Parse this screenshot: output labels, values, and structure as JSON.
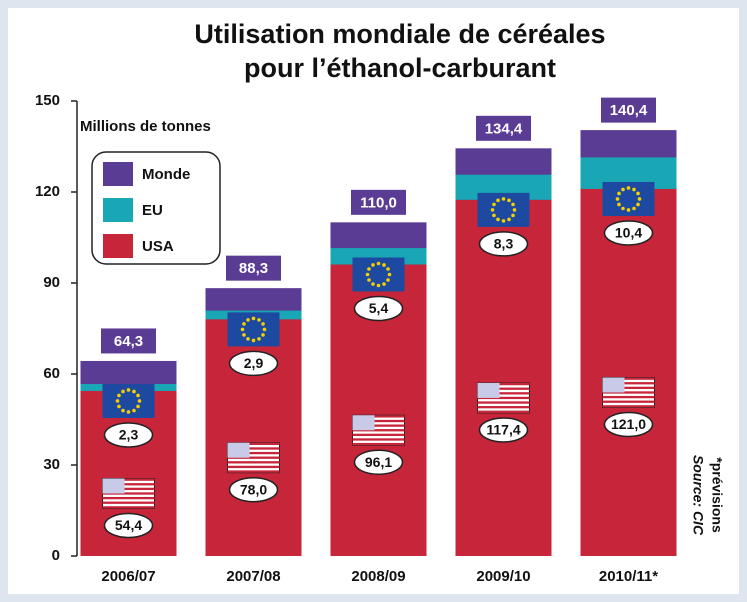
{
  "chart_data": {
    "type": "bar",
    "title": [
      "Utilisation mondiale de céréales",
      "pour l’éthanol-carburant"
    ],
    "y_axis_label": "Millions de tonnes",
    "notes": [
      "Source: CIC",
      "*prévisions"
    ],
    "categories": [
      "2006/07",
      "2007/08",
      "2008/09",
      "2009/10",
      "2010/11*"
    ],
    "series": [
      {
        "name": "Monde",
        "color": "#5a3c94",
        "values": [
          64.3,
          88.3,
          110.0,
          134.4,
          140.4
        ],
        "value_labels": [
          "64,3",
          "88,3",
          "110,0",
          "134,4",
          "140,4"
        ]
      },
      {
        "name": "EU",
        "color": "#19a7b6",
        "values": [
          2.3,
          2.9,
          5.4,
          8.3,
          10.4
        ],
        "value_labels": [
          "2,3",
          "2,9",
          "5,4",
          "8,3",
          "10,4"
        ]
      },
      {
        "name": "USA",
        "color": "#c7263a",
        "values": [
          54.4,
          78.0,
          96.1,
          117.4,
          121.0
        ],
        "value_labels": [
          "54,4",
          "78,0",
          "96,1",
          "117,4",
          "121,0"
        ]
      }
    ],
    "ylim": [
      0,
      150
    ],
    "yticks": [
      0,
      30,
      60,
      90,
      120,
      150
    ]
  }
}
